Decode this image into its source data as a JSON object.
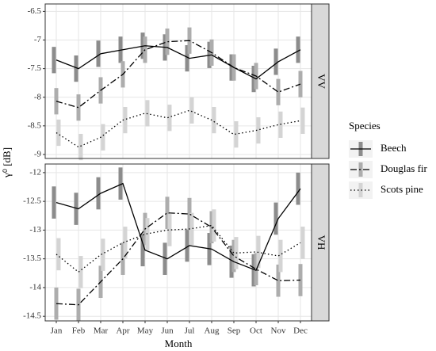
{
  "y_label": "γ⁰ [dB]",
  "x_label": "Month",
  "legend_title": "Species",
  "chart_data": [
    {
      "type": "line",
      "facet": "VV",
      "ylim": [
        -9.07,
        -6.37
      ],
      "yticks": [
        -6.5,
        -7.0,
        -7.5,
        -8.0,
        -8.5,
        -9.0
      ],
      "grid": true,
      "series": [
        {
          "name": "Beech",
          "color": "#000000",
          "linestyle": "solid",
          "error_color": "#8c8c8c",
          "values": [
            -7.35,
            -7.5,
            -7.24,
            -7.17,
            -7.1,
            -7.13,
            -7.32,
            -7.26,
            -7.48,
            -7.68,
            -7.38,
            -7.17
          ],
          "errors": [
            0.23,
            0.23,
            0.23,
            0.23,
            0.23,
            0.23,
            0.23,
            0.23,
            0.23,
            0.23,
            0.23,
            0.23
          ]
        },
        {
          "name": "Douglas fir",
          "color": "#000000",
          "linestyle": "dashdot",
          "error_color": "#adadad",
          "values": [
            -8.07,
            -8.18,
            -7.88,
            -7.6,
            -7.17,
            -7.03,
            -7.01,
            -7.22,
            -7.48,
            -7.63,
            -7.91,
            -7.77
          ],
          "errors": [
            0.23,
            0.23,
            0.23,
            0.23,
            0.23,
            0.23,
            0.23,
            0.23,
            0.23,
            0.23,
            0.23,
            0.23
          ]
        },
        {
          "name": "Scots pine",
          "color": "#000000",
          "linestyle": "dotted",
          "error_color": "#d4d4d4",
          "values": [
            -8.62,
            -8.87,
            -8.7,
            -8.4,
            -8.28,
            -8.36,
            -8.23,
            -8.4,
            -8.65,
            -8.58,
            -8.48,
            -8.41
          ],
          "errors": [
            0.23,
            0.23,
            0.23,
            0.23,
            0.23,
            0.23,
            0.23,
            0.23,
            0.23,
            0.23,
            0.23,
            0.23
          ]
        }
      ]
    },
    {
      "type": "line",
      "facet": "VH",
      "categories": [
        "Jan",
        "Feb",
        "Mar",
        "Apr",
        "May",
        "Jun",
        "Jul",
        "Aug",
        "Sep",
        "Oct",
        "Nov",
        "Dec"
      ],
      "ylim": [
        -14.58,
        -11.85
      ],
      "yticks": [
        -12.0,
        -12.5,
        -13.0,
        -13.5,
        -14.0,
        -14.5
      ],
      "grid": true,
      "series": [
        {
          "color": "#000000",
          "linestyle": "solid",
          "error_color": "#8c8c8c",
          "values": [
            -12.52,
            -12.63,
            -12.36,
            -12.19,
            -13.35,
            -13.5,
            -13.27,
            -13.33,
            -13.55,
            -13.7,
            -12.8,
            -12.28
          ],
          "errors": [
            0.28,
            0.28,
            0.28,
            0.28,
            0.28,
            0.28,
            0.28,
            0.28,
            0.28,
            0.28,
            0.28,
            0.28
          ]
        },
        {
          "color": "#000000",
          "linestyle": "dashdot",
          "error_color": "#adadad",
          "values": [
            -14.28,
            -14.3,
            -13.9,
            -13.5,
            -12.98,
            -12.7,
            -12.72,
            -12.95,
            -13.45,
            -13.68,
            -13.88,
            -13.87
          ],
          "errors": [
            0.28,
            0.28,
            0.28,
            0.28,
            0.28,
            0.28,
            0.28,
            0.28,
            0.28,
            0.28,
            0.28,
            0.28
          ]
        },
        {
          "color": "#000000",
          "linestyle": "dotted",
          "error_color": "#d4d4d4",
          "values": [
            -13.42,
            -13.73,
            -13.43,
            -13.22,
            -13.07,
            -13.0,
            -12.98,
            -12.92,
            -13.4,
            -13.38,
            -13.45,
            -13.22
          ],
          "errors": [
            0.28,
            0.28,
            0.28,
            0.28,
            0.28,
            0.28,
            0.28,
            0.28,
            0.28,
            0.28,
            0.28,
            0.28
          ]
        }
      ]
    }
  ]
}
